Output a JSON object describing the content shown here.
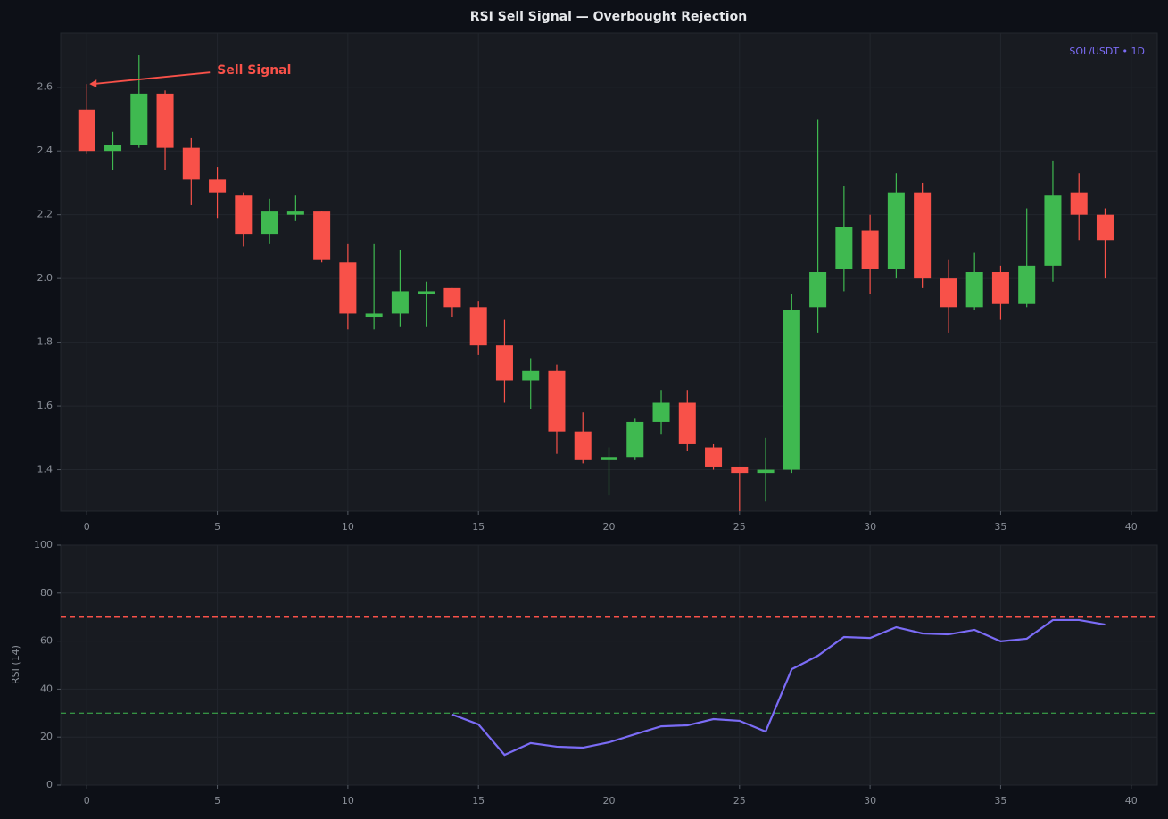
{
  "chart_data": [
    {
      "type": "candlestick",
      "title": "RSI Sell Signal — Overbought Rejection",
      "subtitle": "SOL/USDT • 1D",
      "x": [
        0,
        1,
        2,
        3,
        4,
        5,
        6,
        7,
        8,
        9,
        10,
        11,
        12,
        13,
        14,
        15,
        16,
        17,
        18,
        19,
        20,
        21,
        22,
        23,
        24,
        25,
        26,
        27,
        28,
        29,
        30,
        31,
        32,
        33,
        34,
        35,
        36,
        37,
        38,
        39
      ],
      "open": [
        2.53,
        2.4,
        2.42,
        2.58,
        2.41,
        2.31,
        2.26,
        2.14,
        2.2,
        2.21,
        2.05,
        1.88,
        1.89,
        1.95,
        1.97,
        1.91,
        1.79,
        1.68,
        1.71,
        1.52,
        1.43,
        1.44,
        1.55,
        1.61,
        1.47,
        1.41,
        1.39,
        1.4,
        1.91,
        2.03,
        2.15,
        2.03,
        2.27,
        2.0,
        1.91,
        2.02,
        1.92,
        2.04,
        2.27,
        2.2
      ],
      "high": [
        2.61,
        2.46,
        2.7,
        2.59,
        2.44,
        2.35,
        2.27,
        2.25,
        2.26,
        2.21,
        2.11,
        2.11,
        2.09,
        1.99,
        1.97,
        1.93,
        1.87,
        1.75,
        1.73,
        1.58,
        1.47,
        1.56,
        1.65,
        1.65,
        1.48,
        1.41,
        1.5,
        1.95,
        2.5,
        2.29,
        2.2,
        2.33,
        2.3,
        2.06,
        2.08,
        2.04,
        2.22,
        2.37,
        2.33,
        2.22
      ],
      "low": [
        2.39,
        2.34,
        2.41,
        2.34,
        2.23,
        2.19,
        2.1,
        2.11,
        2.18,
        2.05,
        1.84,
        1.84,
        1.85,
        1.85,
        1.88,
        1.76,
        1.61,
        1.59,
        1.45,
        1.42,
        1.32,
        1.43,
        1.51,
        1.46,
        1.4,
        1.27,
        1.3,
        1.39,
        1.83,
        1.96,
        1.95,
        2.0,
        1.97,
        1.83,
        1.9,
        1.87,
        1.91,
        1.99,
        2.12,
        2.0
      ],
      "close": [
        2.4,
        2.42,
        2.58,
        2.41,
        2.31,
        2.27,
        2.14,
        2.21,
        2.21,
        2.06,
        1.89,
        1.89,
        1.96,
        1.96,
        1.91,
        1.79,
        1.68,
        1.71,
        1.52,
        1.43,
        1.44,
        1.55,
        1.61,
        1.48,
        1.41,
        1.39,
        1.4,
        1.9,
        2.02,
        2.16,
        2.03,
        2.27,
        2.0,
        1.91,
        2.02,
        1.92,
        2.04,
        2.26,
        2.2,
        2.12
      ],
      "up_color": "#3fb950",
      "down_color": "#f85149",
      "xlim": [
        -1,
        41
      ],
      "xticks": [
        0,
        5,
        10,
        15,
        20,
        25,
        30,
        35,
        40
      ],
      "ylim": [
        1.27,
        2.77
      ],
      "yticks": [
        1.4,
        1.6,
        1.8,
        {
          "value": 2,
          "label": "2.0"
        },
        2.2,
        2.4,
        2.6
      ],
      "grid": true,
      "annotation": {
        "text": "Sell Signal",
        "x": 0,
        "y": 2.61,
        "color": "#f85149"
      }
    },
    {
      "type": "line",
      "ylabel": "RSI (14)",
      "x": [
        0,
        1,
        2,
        3,
        4,
        5,
        6,
        7,
        8,
        9,
        10,
        11,
        12,
        13,
        14,
        15,
        16,
        17,
        18,
        19,
        20,
        21,
        22,
        23,
        24,
        25,
        26,
        27,
        28,
        29,
        30,
        31,
        32,
        33,
        34,
        35,
        36,
        37,
        38,
        39
      ],
      "values": [
        null,
        null,
        null,
        null,
        null,
        null,
        null,
        null,
        null,
        null,
        null,
        null,
        null,
        null,
        29.4,
        25.3,
        12.6,
        17.5,
        16.0,
        15.6,
        17.8,
        21.2,
        24.5,
        24.9,
        27.5,
        26.8,
        22.3,
        48.3,
        53.9,
        61.7,
        61.3,
        65.8,
        63.2,
        62.8,
        64.7,
        59.9,
        61.0,
        68.8,
        68.8,
        66.9
      ],
      "color": "#7b6cf6",
      "xlim": [
        -1,
        41
      ],
      "xticks": [
        0,
        5,
        10,
        15,
        20,
        25,
        30,
        35,
        40
      ],
      "ylim": [
        0,
        100
      ],
      "yticks": [
        0,
        20,
        40,
        60,
        80,
        100
      ],
      "grid": true,
      "hlines": [
        {
          "value": 70,
          "color": "#f85149"
        },
        {
          "value": 30,
          "color": "#3fb950"
        }
      ]
    }
  ]
}
